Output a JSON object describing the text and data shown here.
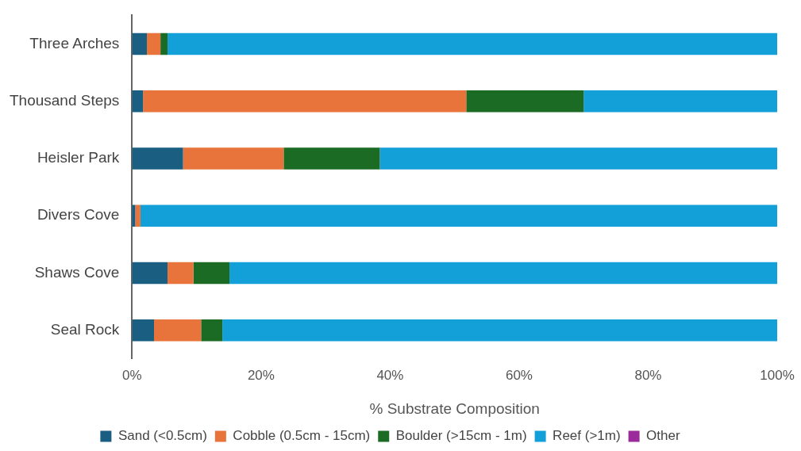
{
  "chart_data": {
    "type": "bar",
    "orientation": "horizontal",
    "stacked": true,
    "xlabel": "% Substrate Composition",
    "categories": [
      "Three Arches",
      "Thousand Steps",
      "Heisler Park",
      "Divers Cove",
      "Shaws Cove",
      "Seal Rock"
    ],
    "series": [
      {
        "name": "Sand (<0.5cm)",
        "color": "#1a5e82",
        "values": [
          2.3,
          1.7,
          7.9,
          0.5,
          5.5,
          3.4
        ]
      },
      {
        "name": "Cobble (0.5cm - 15cm)",
        "color": "#e8743b",
        "values": [
          2.1,
          50.1,
          15.6,
          0.8,
          4.0,
          7.3
        ]
      },
      {
        "name": "Boulder (>15cm - 1m)",
        "color": "#1b6b24",
        "values": [
          1.1,
          18.2,
          14.9,
          0,
          5.6,
          3.3
        ]
      },
      {
        "name": "Reef (>1m)",
        "color": "#13a0d8",
        "values": [
          94.5,
          30.0,
          61.6,
          98.7,
          84.9,
          86.0
        ]
      },
      {
        "name": "Other",
        "color": "#9b2a9b",
        "values": [
          0,
          0,
          0,
          0,
          0,
          0
        ]
      }
    ],
    "xlim": [
      0,
      100
    ],
    "xticks": [
      {
        "value": 0,
        "label": "0%"
      },
      {
        "value": 20,
        "label": "20%"
      },
      {
        "value": 40,
        "label": "40%"
      },
      {
        "value": 60,
        "label": "60%"
      },
      {
        "value": 80,
        "label": "80%"
      },
      {
        "value": 100,
        "label": "100%"
      }
    ],
    "grid": false,
    "legend": "bottom"
  }
}
